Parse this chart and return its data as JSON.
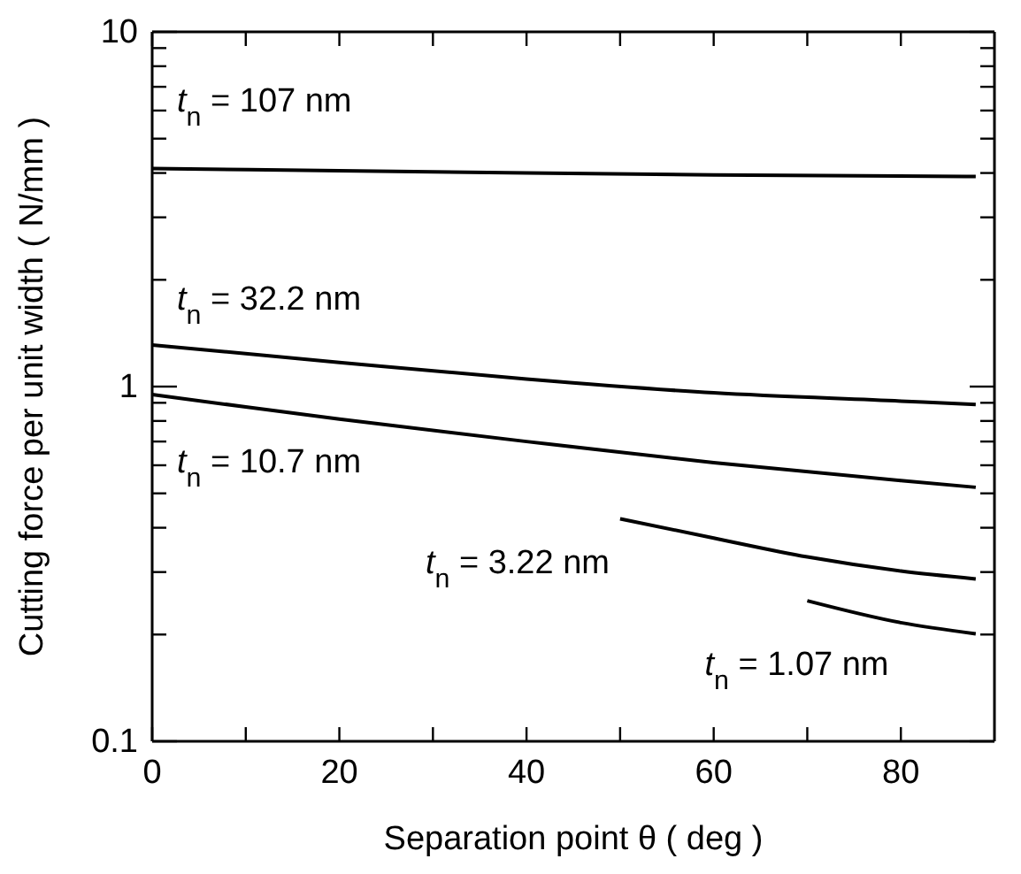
{
  "chart_data": {
    "type": "line",
    "xlabel": "Separation point θ  ( deg )",
    "ylabel": "Cutting force per unit width ( N/mm )",
    "log": "y",
    "line_style": "solid",
    "marker": "none",
    "grid": false,
    "xlim": [
      0,
      90
    ],
    "ylim": [
      0.1,
      10
    ],
    "xticks": [
      0,
      {
        "value": 10,
        "label": null
      },
      20,
      {
        "value": 30,
        "label": null
      },
      40,
      {
        "value": 50,
        "label": null
      },
      60,
      {
        "value": 70,
        "label": null
      },
      80
    ],
    "yticks": [
      0.1,
      {
        "value": 0.2,
        "label": null
      },
      {
        "value": 0.3,
        "label": null
      },
      {
        "value": 0.4,
        "label": null
      },
      {
        "value": 0.5,
        "label": null
      },
      {
        "value": 0.6,
        "label": null
      },
      {
        "value": 0.7,
        "label": null
      },
      {
        "value": 0.8,
        "label": null
      },
      {
        "value": 0.9,
        "label": null
      },
      1,
      {
        "value": 2,
        "label": null
      },
      {
        "value": 3,
        "label": null
      },
      {
        "value": 4,
        "label": null
      },
      {
        "value": 5,
        "label": null
      },
      {
        "value": 6,
        "label": null
      },
      {
        "value": 7,
        "label": null
      },
      {
        "value": 8,
        "label": null
      },
      {
        "value": 9,
        "label": null
      },
      10
    ],
    "series": [
      {
        "name": "t$_{n}$ = 107 nm",
        "color": "#000000",
        "x": [
          0,
          20,
          40,
          60,
          88
        ],
        "values": [
          4.12,
          4.06,
          4.0,
          3.95,
          3.91
        ]
      },
      {
        "name": "t$_{n}$ = 32.2 nm",
        "color": "#000000",
        "x": [
          0,
          20,
          40,
          60,
          80,
          88
        ],
        "values": [
          1.31,
          1.17,
          1.05,
          0.96,
          0.91,
          0.89
        ]
      },
      {
        "name": "t$_{n}$ = 10.7 nm",
        "color": "#000000",
        "x": [
          0,
          10,
          20,
          40,
          60,
          80,
          88
        ],
        "values": [
          0.95,
          0.876,
          0.81,
          0.7,
          0.61,
          0.543,
          0.52
        ]
      },
      {
        "name": "t$_{n}$ = 3.22 nm",
        "color": "#000000",
        "x": [
          50,
          60,
          70,
          80,
          88
        ],
        "values": [
          0.424,
          0.374,
          0.331,
          0.302,
          0.287
        ]
      },
      {
        "name": "t$_{n}$ = 1.07 nm",
        "color": "#000000",
        "x": [
          70,
          80,
          88
        ],
        "values": [
          0.249,
          0.216,
          0.201
        ]
      }
    ]
  }
}
